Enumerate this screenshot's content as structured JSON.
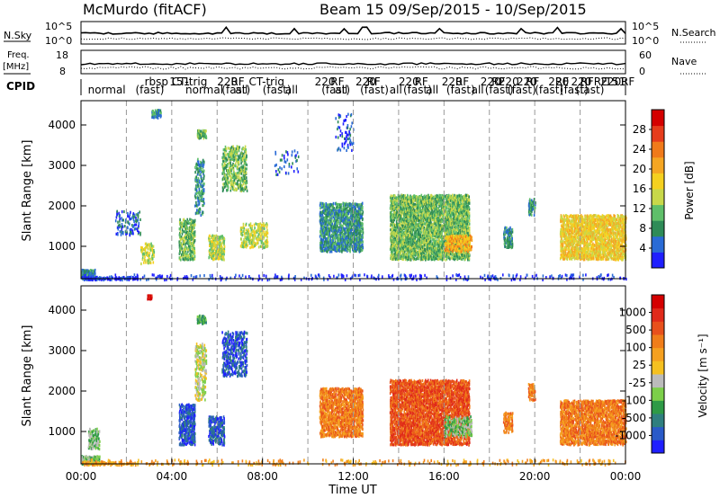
{
  "header": {
    "station": "McMurdo (fitACF)",
    "beam_info": "Beam 15  09/Sep/2015 - 10/Sep/2015"
  },
  "top_panels": {
    "nsky_label": "N.Sky",
    "nsky_ticks": [
      "10^5",
      "10^0"
    ],
    "nsearch_label": "N.Search",
    "freq_label": "Freq.",
    "freq_unit": "[MHz]",
    "freq_ticks": [
      "18",
      "8"
    ],
    "nave_label": "Nave",
    "nave_ticks": [
      "60",
      "0"
    ],
    "cpid_label": "CPID"
  },
  "cpid_labels": [
    {
      "text": "normal",
      "hour": 0.3
    },
    {
      "text": "rbsp",
      "hour": 2.8
    },
    {
      "text": "(fast)",
      "hour": 2.4
    },
    {
      "text": "CT-trig",
      "hour": 4.0
    },
    {
      "text": "151",
      "hour": 3.9
    },
    {
      "text": "normal",
      "hour": 4.6
    },
    {
      "text": "220",
      "hour": 6.0
    },
    {
      "text": "RF",
      "hour": 6.6
    },
    {
      "text": "(fast)",
      "hour": 6.2
    },
    {
      "text": "all",
      "hour": 6.8
    },
    {
      "text": "CT-trig",
      "hour": 7.4
    },
    {
      "text": "(fast)",
      "hour": 8.0
    },
    {
      "text": "all",
      "hour": 9.0
    },
    {
      "text": "220",
      "hour": 10.3
    },
    {
      "text": "RF",
      "hour": 11.0
    },
    {
      "text": "(fast)",
      "hour": 10.6
    },
    {
      "text": "all",
      "hour": 11.2
    },
    {
      "text": "220",
      "hour": 12.1
    },
    {
      "text": "RF",
      "hour": 12.6
    },
    {
      "text": "(fast)",
      "hour": 12.3
    },
    {
      "text": "all",
      "hour": 13.6
    },
    {
      "text": "220",
      "hour": 14.0
    },
    {
      "text": "RF",
      "hour": 14.7
    },
    {
      "text": "(fast)",
      "hour": 14.2
    },
    {
      "text": "all",
      "hour": 15.2
    },
    {
      "text": "220",
      "hour": 15.9
    },
    {
      "text": "RF",
      "hour": 16.5
    },
    {
      "text": "(fast)",
      "hour": 16.1
    },
    {
      "text": "all",
      "hour": 17.2
    },
    {
      "text": "220",
      "hour": 17.6
    },
    {
      "text": "RF",
      "hour": 18.1
    },
    {
      "text": "(fast)",
      "hour": 17.8
    },
    {
      "text": "220",
      "hour": 18.4
    },
    {
      "text": "(fast)",
      "hour": 18.8
    },
    {
      "text": "220",
      "hour": 19.2
    },
    {
      "text": "RF",
      "hour": 19.6
    },
    {
      "text": "(fast)",
      "hour": 20.0
    },
    {
      "text": "220",
      "hour": 20.6
    },
    {
      "text": "RF",
      "hour": 20.9
    },
    {
      "text": "(fast)",
      "hour": 21.1
    },
    {
      "text": "220",
      "hour": 21.6
    },
    {
      "text": "RF",
      "hour": 22.0
    },
    {
      "text": "(fast)",
      "hour": 21.8
    },
    {
      "text": "RF",
      "hour": 22.6
    },
    {
      "text": "220",
      "hour": 22.9
    },
    {
      "text": "151",
      "hour": 23.1
    },
    {
      "text": "RF",
      "hour": 23.8
    }
  ],
  "chart_data": [
    {
      "type": "heatmap",
      "name": "power",
      "ylabel": "Slant Range [km]",
      "xlim": [
        0,
        24
      ],
      "ylim": [
        200,
        4600
      ],
      "yticks": [
        1000,
        2000,
        3000,
        4000
      ],
      "colorbar": {
        "label": "Power [dB]",
        "ticks": [
          "4",
          "8",
          "12",
          "16",
          "20",
          "24",
          "28"
        ],
        "colors": [
          "#1f1fff",
          "#2a6bd6",
          "#2e8b57",
          "#5fbf6a",
          "#c8d84a",
          "#f5d020",
          "#f5a623",
          "#f07a1a",
          "#e63c1c",
          "#d40000"
        ]
      },
      "blobs": [
        {
          "x0": 0.0,
          "x1": 0.6,
          "y0": 220,
          "y1": 450,
          "cls": 2,
          "dens": 0.9
        },
        {
          "x0": 0.0,
          "x1": 2.5,
          "y0": 200,
          "y1": 280,
          "cls": 0,
          "dens": 0.5
        },
        {
          "x0": 1.5,
          "x1": 2.6,
          "y0": 1300,
          "y1": 1900,
          "cls": 1,
          "dens": 0.15
        },
        {
          "x0": 2.6,
          "x1": 3.2,
          "y0": 600,
          "y1": 1100,
          "cls": 4,
          "dens": 0.3
        },
        {
          "x0": 3.1,
          "x1": 3.5,
          "y0": 4200,
          "y1": 4400,
          "cls": 2,
          "dens": 0.6
        },
        {
          "x0": 4.3,
          "x1": 5.0,
          "y0": 700,
          "y1": 1700,
          "cls": 3,
          "dens": 0.45
        },
        {
          "x0": 5.0,
          "x1": 5.4,
          "y0": 1800,
          "y1": 3200,
          "cls": 2,
          "dens": 0.3
        },
        {
          "x0": 5.1,
          "x1": 5.5,
          "y0": 3700,
          "y1": 3900,
          "cls": 3,
          "dens": 0.7
        },
        {
          "x0": 5.6,
          "x1": 6.3,
          "y0": 700,
          "y1": 1300,
          "cls": 4,
          "dens": 0.5
        },
        {
          "x0": 6.2,
          "x1": 7.3,
          "y0": 2400,
          "y1": 3500,
          "cls": 3,
          "dens": 0.35
        },
        {
          "x0": 7.0,
          "x1": 8.2,
          "y0": 1000,
          "y1": 1600,
          "cls": 4,
          "dens": 0.35
        },
        {
          "x0": 8.5,
          "x1": 9.6,
          "y0": 2800,
          "y1": 3400,
          "cls": 1,
          "dens": 0.08
        },
        {
          "x0": 10.5,
          "x1": 12.4,
          "y0": 900,
          "y1": 2100,
          "cls": 2,
          "dens": 0.55
        },
        {
          "x0": 11.2,
          "x1": 12.0,
          "y0": 3400,
          "y1": 4300,
          "cls": 1,
          "dens": 0.1
        },
        {
          "x0": 13.6,
          "x1": 17.1,
          "y0": 700,
          "y1": 2300,
          "cls": 3,
          "dens": 0.6
        },
        {
          "x0": 16.0,
          "x1": 17.2,
          "y0": 900,
          "y1": 1300,
          "cls": 6,
          "dens": 0.5
        },
        {
          "x0": 18.6,
          "x1": 19.0,
          "y0": 1000,
          "y1": 1500,
          "cls": 2,
          "dens": 0.5
        },
        {
          "x0": 19.7,
          "x1": 20.0,
          "y0": 1800,
          "y1": 2200,
          "cls": 2,
          "dens": 0.5
        },
        {
          "x0": 21.1,
          "x1": 24.0,
          "y0": 700,
          "y1": 1800,
          "cls": 5,
          "dens": 0.55
        },
        {
          "x0": 0.0,
          "x1": 24.0,
          "y0": 200,
          "y1": 330,
          "cls": 0,
          "dens": 0.12
        }
      ]
    },
    {
      "type": "heatmap",
      "name": "velocity",
      "ylabel": "Slant Range [km]",
      "xlabel": "Time UT",
      "xlim": [
        0,
        24
      ],
      "ylim": [
        200,
        4600
      ],
      "yticks": [
        1000,
        2000,
        3000,
        4000
      ],
      "xticks": [
        "00:00",
        "04:00",
        "08:00",
        "12:00",
        "16:00",
        "20:00",
        "00:00"
      ],
      "colorbar": {
        "label": "Velocity [m s⁻¹]",
        "ticks": [
          "1000",
          "500",
          "100",
          "25",
          "-25",
          "-100",
          "-500",
          "-1000"
        ],
        "colors": [
          "#1f1fff",
          "#2a5ac8",
          "#2f7f7f",
          "#2e9a46",
          "#7ccf4a",
          "#bbbbbb",
          "#f5c020",
          "#f5a020",
          "#f07d1a",
          "#e8501c",
          "#e02a1a",
          "#d40000"
        ]
      },
      "blobs": [
        {
          "x0": 0.0,
          "x1": 0.8,
          "y0": 220,
          "y1": 420,
          "cls": 4,
          "dens": 0.9
        },
        {
          "x0": 0.0,
          "x1": 2.5,
          "y0": 200,
          "y1": 280,
          "cls": 7,
          "dens": 0.4
        },
        {
          "x0": 0.3,
          "x1": 0.8,
          "y0": 600,
          "y1": 1100,
          "cls": 4,
          "dens": 0.4
        },
        {
          "x0": 2.9,
          "x1": 3.1,
          "y0": 4300,
          "y1": 4400,
          "cls": 11,
          "dens": 0.9
        },
        {
          "x0": 4.3,
          "x1": 5.0,
          "y0": 700,
          "y1": 1700,
          "cls": 1,
          "dens": 0.5
        },
        {
          "x0": 5.0,
          "x1": 5.5,
          "y0": 1800,
          "y1": 3200,
          "cls": 5,
          "dens": 0.3
        },
        {
          "x0": 5.1,
          "x1": 5.5,
          "y0": 3700,
          "y1": 3900,
          "cls": 3,
          "dens": 0.7
        },
        {
          "x0": 5.6,
          "x1": 6.3,
          "y0": 700,
          "y1": 1400,
          "cls": 1,
          "dens": 0.5
        },
        {
          "x0": 6.2,
          "x1": 7.3,
          "y0": 2400,
          "y1": 3500,
          "cls": 1,
          "dens": 0.35
        },
        {
          "x0": 10.5,
          "x1": 12.4,
          "y0": 900,
          "y1": 2100,
          "cls": 8,
          "dens": 0.55
        },
        {
          "x0": 13.6,
          "x1": 17.1,
          "y0": 700,
          "y1": 2300,
          "cls": 9,
          "dens": 0.6
        },
        {
          "x0": 16.0,
          "x1": 17.2,
          "y0": 900,
          "y1": 1400,
          "cls": 4,
          "dens": 0.4
        },
        {
          "x0": 18.6,
          "x1": 19.0,
          "y0": 1000,
          "y1": 1500,
          "cls": 8,
          "dens": 0.5
        },
        {
          "x0": 19.7,
          "x1": 20.0,
          "y0": 1800,
          "y1": 2200,
          "cls": 8,
          "dens": 0.5
        },
        {
          "x0": 21.1,
          "x1": 24.0,
          "y0": 700,
          "y1": 1800,
          "cls": 8,
          "dens": 0.55
        },
        {
          "x0": 0.0,
          "x1": 24.0,
          "y0": 200,
          "y1": 330,
          "cls": 7,
          "dens": 0.12
        }
      ]
    }
  ]
}
